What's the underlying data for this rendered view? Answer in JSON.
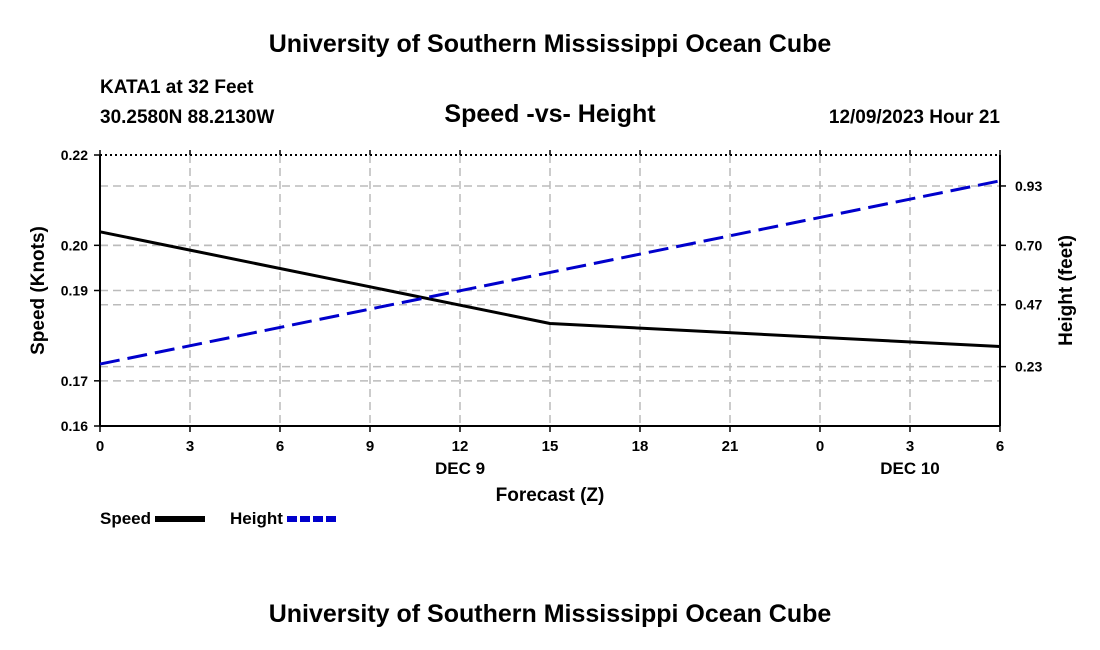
{
  "header": {
    "top_title": "University of Southern Mississippi Ocean Cube",
    "station": "KATA1 at 32 Feet",
    "coords": "30.2580N  88.2130W",
    "datetime": "12/09/2023 Hour 21",
    "bottom_title": "University of Southern Mississippi Ocean Cube"
  },
  "chart_data": {
    "type": "line",
    "title": "Speed -vs- Height",
    "xlabel": "Forecast (Z)",
    "ylabel": "Speed (Knots)",
    "y2label": "Height (feet)",
    "x": [
      0,
      3,
      6,
      9,
      12,
      15,
      18,
      21,
      24,
      27,
      30
    ],
    "x_tick_labels": [
      "0",
      "3",
      "6",
      "9",
      "12",
      "15",
      "18",
      "21",
      "0",
      "3",
      "6"
    ],
    "x_date_labels": [
      {
        "x": 12,
        "label": "DEC 9"
      },
      {
        "x": 27,
        "label": "DEC 10"
      }
    ],
    "ylim": [
      0.16,
      0.22
    ],
    "y_ticks": [
      0.16,
      0.17,
      0.19,
      0.2,
      0.22
    ],
    "y_tick_labels": [
      "0.16",
      "0.17",
      "0.19",
      "0.20",
      "0.22"
    ],
    "y2lim": [
      0.0,
      1.05
    ],
    "y2_ticks": [
      0.23,
      0.47,
      0.7,
      0.93
    ],
    "y2_tick_labels": [
      "0.23",
      "0.47",
      "0.70",
      "0.93"
    ],
    "grid": true,
    "series": [
      {
        "name": "Speed",
        "axis": "left",
        "color": "#000000",
        "style": "solid",
        "x": [
          0,
          15,
          30
        ],
        "values": [
          0.203,
          0.1827,
          0.1776
        ]
      },
      {
        "name": "Height",
        "axis": "right",
        "color": "#0000cc",
        "style": "dashed",
        "x": [
          0,
          30
        ],
        "values": [
          0.24,
          0.95
        ]
      }
    ],
    "legend": {
      "placement": "bottom-left",
      "items": [
        {
          "label": "Speed",
          "color": "#000000",
          "style": "solid"
        },
        {
          "label": "Height",
          "color": "#0000cc",
          "style": "dashed"
        }
      ]
    }
  }
}
